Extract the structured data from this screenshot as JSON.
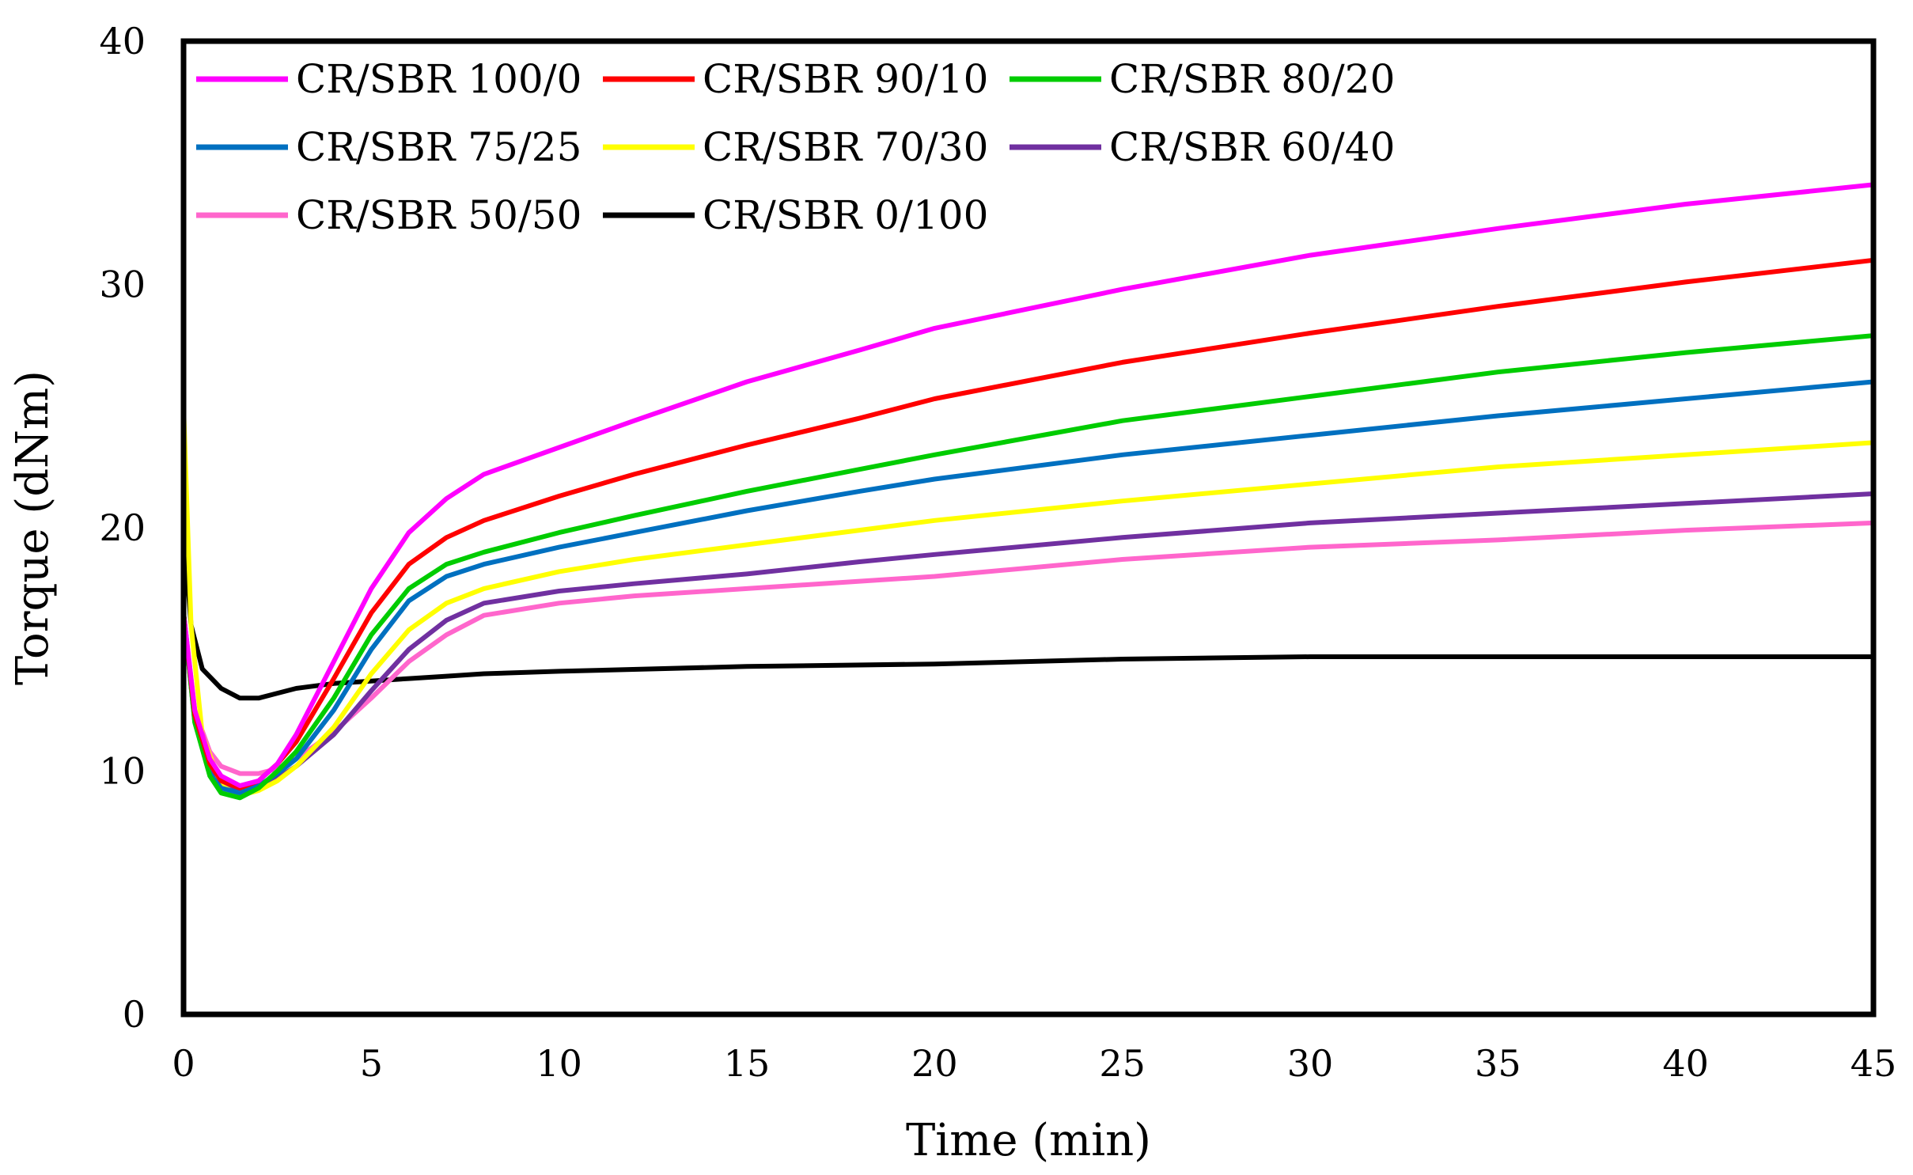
{
  "chart_data": {
    "type": "line",
    "title": "",
    "xlabel": "Time (min)",
    "ylabel": "Torque (dNm)",
    "xlim": [
      0,
      45
    ],
    "ylim": [
      0,
      40
    ],
    "xticks": [
      "0",
      "5",
      "10",
      "15",
      "20",
      "25",
      "30",
      "35",
      "40",
      "45"
    ],
    "yticks": [
      "0",
      "10",
      "20",
      "30",
      "40"
    ],
    "grid": false,
    "legend_position": "top-left",
    "series": [
      {
        "name": "CR/SBR 100/0",
        "color": "#ff00ff",
        "x": [
          0,
          0.3,
          0.7,
          1,
          1.5,
          2,
          2.5,
          3,
          4,
          5,
          6,
          7,
          8,
          10,
          12,
          15,
          18,
          20,
          25,
          30,
          35,
          40,
          45
        ],
        "y": [
          16.5,
          12.5,
          10.5,
          9.8,
          9.4,
          9.6,
          10.3,
          11.5,
          14.5,
          17.5,
          19.8,
          21.2,
          22.2,
          23.3,
          24.4,
          26.0,
          27.3,
          28.2,
          29.8,
          31.2,
          32.3,
          33.3,
          34.1
        ]
      },
      {
        "name": "CR/SBR 90/10",
        "color": "#ff0000",
        "x": [
          0,
          0.3,
          0.7,
          1,
          1.5,
          2,
          2.5,
          3,
          4,
          5,
          6,
          7,
          8,
          10,
          12,
          15,
          18,
          20,
          25,
          30,
          35,
          40,
          45
        ],
        "y": [
          16.5,
          12.3,
          10.3,
          9.6,
          9.3,
          9.6,
          10.3,
          11.2,
          13.8,
          16.5,
          18.5,
          19.6,
          20.3,
          21.3,
          22.2,
          23.4,
          24.5,
          25.3,
          26.8,
          28.0,
          29.1,
          30.1,
          31.0
        ]
      },
      {
        "name": "CR/SBR 80/20",
        "color": "#00cc00",
        "x": [
          0,
          0.3,
          0.7,
          1,
          1.5,
          2,
          2.5,
          3,
          4,
          5,
          6,
          7,
          8,
          10,
          12,
          15,
          18,
          20,
          25,
          30,
          35,
          40,
          45
        ],
        "y": [
          16.5,
          12.0,
          9.8,
          9.1,
          8.9,
          9.3,
          10.0,
          10.8,
          13.0,
          15.6,
          17.5,
          18.5,
          19.0,
          19.8,
          20.5,
          21.5,
          22.4,
          23.0,
          24.4,
          25.4,
          26.4,
          27.2,
          27.9
        ]
      },
      {
        "name": "CR/SBR 75/25",
        "color": "#0070c0",
        "x": [
          0,
          0.3,
          0.7,
          1,
          1.5,
          2,
          2.5,
          3,
          4,
          5,
          6,
          7,
          8,
          10,
          12,
          15,
          18,
          20,
          25,
          30,
          35,
          40,
          45
        ],
        "y": [
          16.5,
          12.0,
          9.9,
          9.3,
          9.1,
          9.4,
          9.9,
          10.5,
          12.5,
          15.0,
          17.0,
          18.0,
          18.5,
          19.2,
          19.8,
          20.7,
          21.5,
          22.0,
          23.0,
          23.8,
          24.6,
          25.3,
          26.0
        ]
      },
      {
        "name": "CR/SBR 70/30",
        "color": "#ffff00",
        "x": [
          0,
          0.2,
          0.5,
          1,
          1.5,
          2,
          2.5,
          3,
          4,
          5,
          6,
          7,
          8,
          10,
          12,
          15,
          18,
          20,
          25,
          30,
          35,
          40,
          45
        ],
        "y": [
          25.0,
          16.0,
          11.5,
          9.4,
          9.0,
          9.2,
          9.6,
          10.2,
          11.8,
          14.0,
          15.8,
          16.9,
          17.5,
          18.2,
          18.7,
          19.3,
          19.9,
          20.3,
          21.1,
          21.8,
          22.5,
          23.0,
          23.5
        ]
      },
      {
        "name": "CR/SBR 60/40",
        "color": "#7030a0",
        "x": [
          0,
          0.3,
          0.7,
          1,
          1.5,
          2,
          2.5,
          3,
          4,
          5,
          6,
          7,
          8,
          10,
          12,
          15,
          18,
          20,
          25,
          30,
          35,
          40,
          45
        ],
        "y": [
          16.5,
          12.2,
          10.2,
          9.5,
          9.1,
          9.3,
          9.7,
          10.2,
          11.5,
          13.3,
          15.0,
          16.2,
          16.9,
          17.4,
          17.7,
          18.1,
          18.6,
          18.9,
          19.6,
          20.2,
          20.6,
          21.0,
          21.4
        ]
      },
      {
        "name": "CR/SBR 50/50",
        "color": "#ff66cc",
        "x": [
          0,
          0.3,
          0.7,
          1,
          1.5,
          2,
          2.5,
          3,
          4,
          5,
          6,
          7,
          8,
          10,
          12,
          15,
          18,
          20,
          25,
          30,
          35,
          40,
          45
        ],
        "y": [
          16.5,
          12.5,
          10.8,
          10.2,
          9.9,
          9.9,
          10.1,
          10.5,
          11.6,
          13.0,
          14.5,
          15.6,
          16.4,
          16.9,
          17.2,
          17.5,
          17.8,
          18.0,
          18.7,
          19.2,
          19.5,
          19.9,
          20.2
        ]
      },
      {
        "name": "CR/SBR 0/100",
        "color": "#000000",
        "x": [
          0,
          0.2,
          0.5,
          1,
          1.5,
          2,
          2.5,
          3,
          4,
          5,
          6,
          7,
          8,
          10,
          15,
          20,
          25,
          30,
          35,
          40,
          45
        ],
        "y": [
          20.0,
          16.0,
          14.2,
          13.4,
          13.0,
          13.0,
          13.2,
          13.4,
          13.6,
          13.7,
          13.8,
          13.9,
          14.0,
          14.1,
          14.3,
          14.4,
          14.6,
          14.7,
          14.7,
          14.7,
          14.7
        ]
      }
    ]
  }
}
